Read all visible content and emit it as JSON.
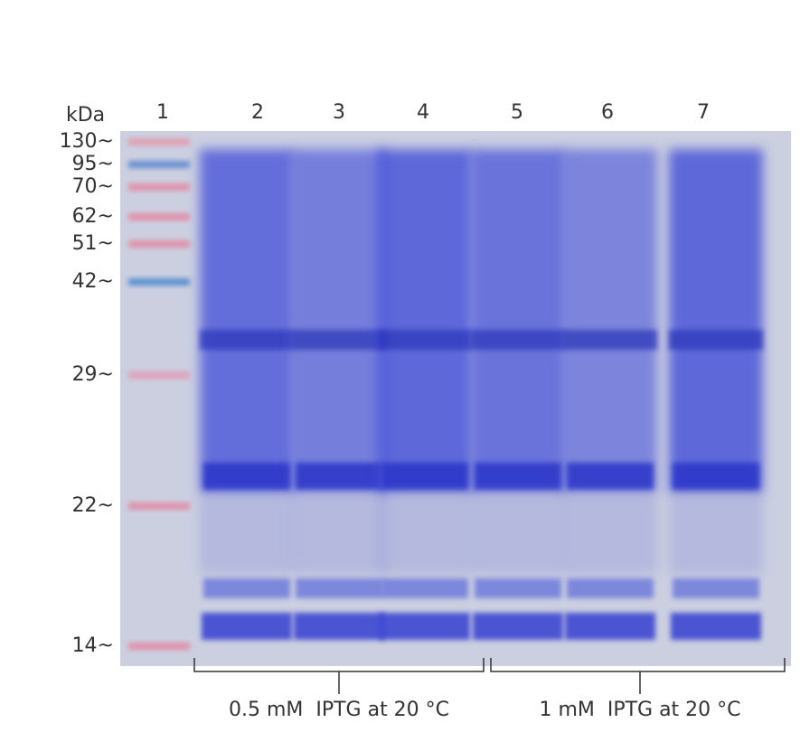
{
  "header_label": "kDa",
  "lanes": [
    "1",
    "2",
    "3",
    "4",
    "5",
    "6",
    "7"
  ],
  "markers": [
    "130~",
    "95~",
    "70~",
    "62~",
    "51~",
    "42~",
    "29~",
    "22~",
    "14~"
  ],
  "conditions": [
    "0.5 mM  IPTG at 20 °C",
    "1 mM  IPTG at 20 °C"
  ]
}
